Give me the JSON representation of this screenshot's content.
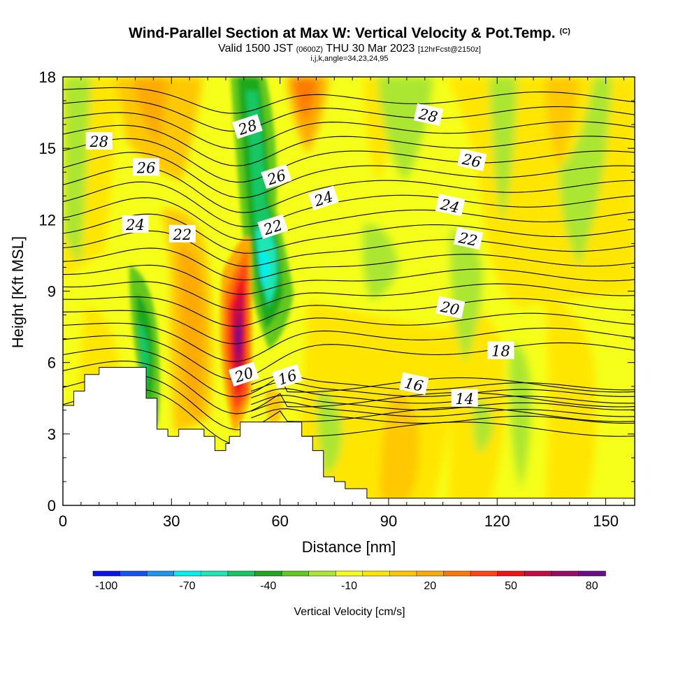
{
  "chart_data": {
    "type": "heatmap",
    "title": "Wind-Parallel Section at Max W: Vertical Velocity & Pot.Temp.",
    "copyright": "(C)",
    "subtitle": {
      "valid": "Valid 1500 JST",
      "utc": "(0600Z)",
      "date": "THU 30 Mar 2023",
      "forecast": "[12hrFcst@2150z]"
    },
    "indices_line": "i,j,k,angle=34,23,24,95",
    "xlabel": "Distance [nm]",
    "ylabel": "Height [Kft MSL]",
    "xlim": [
      0,
      158
    ],
    "ylim": [
      0,
      18
    ],
    "xticks": [
      0,
      30,
      60,
      90,
      120,
      150
    ],
    "yticks": [
      0,
      3,
      6,
      9,
      12,
      15,
      18
    ],
    "colorbar": {
      "label": "Vertical Velocity [cm/s]",
      "tick_labels": [
        "-100",
        "-70",
        "-40",
        "-10",
        "20",
        "50",
        "80"
      ],
      "min": -100,
      "step": 10,
      "colors": [
        "#0a14e6",
        "#1455f0",
        "#1e96f0",
        "#00f0f0",
        "#1ee6b4",
        "#14c864",
        "#1eaa1e",
        "#64c81e",
        "#aae632",
        "#f5ff19",
        "#ffe600",
        "#ffc800",
        "#ffaa00",
        "#ff7800",
        "#ff4614",
        "#f01414",
        "#c80a46",
        "#9b0a69",
        "#6e0a8c"
      ]
    },
    "vertical_velocity_bands": [
      {
        "label": "sinking band above the lee slope",
        "x": [
          45,
          62
        ],
        "y": [
          4,
          18
        ],
        "min_w": -75
      },
      {
        "label": "sinking near-surface band",
        "x": [
          20,
          26
        ],
        "y": [
          3,
          9
        ],
        "min_w": -40
      },
      {
        "label": "rising band above the terrain gap",
        "x": [
          42,
          52
        ],
        "y": [
          2.5,
          12
        ],
        "max_w": 85
      },
      {
        "label": "rising band over the plateau",
        "x": [
          30,
          38
        ],
        "y": [
          3,
          11
        ],
        "max_w": 25
      }
    ],
    "theta_contours": [
      {
        "label": "14",
        "x": 111,
        "y": 4.5
      },
      {
        "label": "16",
        "x": 62,
        "y": 5.4
      },
      {
        "label": "16",
        "x": 97,
        "y": 5.1
      },
      {
        "label": "18",
        "x": 121,
        "y": 6.5
      },
      {
        "label": "20",
        "x": 50,
        "y": 5.5
      },
      {
        "label": "20",
        "x": 107,
        "y": 8.3
      },
      {
        "label": "22",
        "x": 33,
        "y": 11.4
      },
      {
        "label": "22",
        "x": 58,
        "y": 11.7
      },
      {
        "label": "22",
        "x": 112,
        "y": 11.2
      },
      {
        "label": "24",
        "x": 20,
        "y": 11.8
      },
      {
        "label": "24",
        "x": 72,
        "y": 12.9
      },
      {
        "label": "24",
        "x": 107,
        "y": 12.6
      },
      {
        "label": "26",
        "x": 23,
        "y": 14.2
      },
      {
        "label": "26",
        "x": 59,
        "y": 13.8
      },
      {
        "label": "26",
        "x": 113,
        "y": 14.5
      },
      {
        "label": "28",
        "x": 10,
        "y": 15.3
      },
      {
        "label": "28",
        "x": 51,
        "y": 15.9
      },
      {
        "label": "28",
        "x": 101,
        "y": 16.4
      }
    ],
    "terrain": [
      [
        0,
        4.2
      ],
      [
        3,
        4.2
      ],
      [
        3,
        4.8
      ],
      [
        6,
        4.8
      ],
      [
        6,
        5.5
      ],
      [
        10,
        5.5
      ],
      [
        10,
        5.8
      ],
      [
        23,
        5.8
      ],
      [
        23,
        4.5
      ],
      [
        26,
        4.5
      ],
      [
        26,
        3.2
      ],
      [
        29,
        3.2
      ],
      [
        29,
        2.9
      ],
      [
        32,
        2.9
      ],
      [
        32,
        3.2
      ],
      [
        39,
        3.2
      ],
      [
        39,
        2.9
      ],
      [
        42,
        2.9
      ],
      [
        42,
        2.3
      ],
      [
        45,
        2.3
      ],
      [
        45,
        2.6
      ],
      [
        46,
        2.6
      ],
      [
        46,
        2.9
      ],
      [
        49,
        2.9
      ],
      [
        49,
        3.5
      ],
      [
        66,
        3.5
      ],
      [
        66,
        2.9
      ],
      [
        69,
        2.9
      ],
      [
        69,
        2.3
      ],
      [
        72,
        2.3
      ],
      [
        72,
        1.2
      ],
      [
        75,
        1.2
      ],
      [
        75,
        1.0
      ],
      [
        78,
        1.0
      ],
      [
        78,
        0.7
      ],
      [
        84,
        0.7
      ],
      [
        84,
        0.3
      ],
      [
        158,
        0.3
      ]
    ]
  }
}
